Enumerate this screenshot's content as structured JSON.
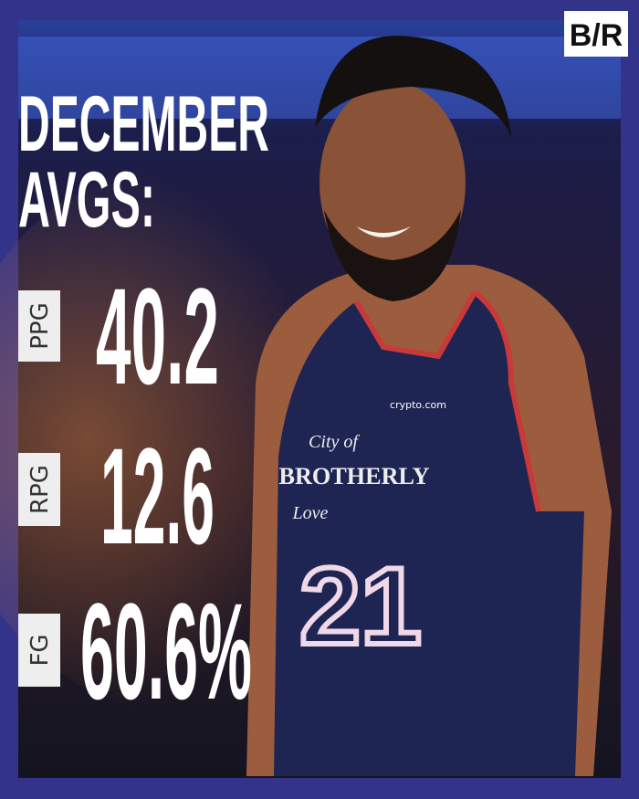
{
  "logo": "B/R",
  "title": {
    "line1": "DECEMBER",
    "line2": "AVGS:"
  },
  "stats": [
    {
      "label": "PPG",
      "value": "40.2"
    },
    {
      "label": "RPG",
      "value": "12.6"
    },
    {
      "label": "FG",
      "value": "60.6%"
    }
  ],
  "photo": {
    "jersey": {
      "sponsor": "crypto.com",
      "line1": "City of",
      "line2": "BROTHERLY",
      "line3": "Love",
      "number": "21"
    }
  }
}
